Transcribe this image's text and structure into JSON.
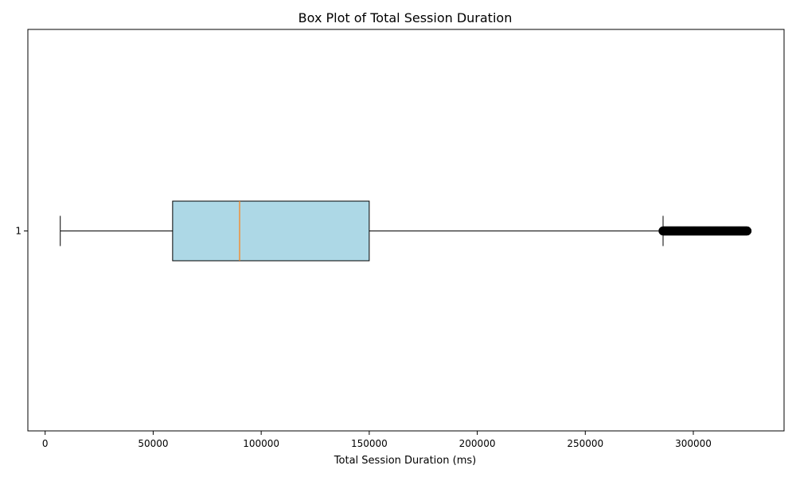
{
  "chart_data": {
    "type": "boxplot",
    "orientation": "horizontal",
    "title": "Box Plot of Total Session Duration",
    "xlabel": "Total Session Duration (ms)",
    "ylabel": "",
    "xlim": [
      -8000,
      342000
    ],
    "xticks": [
      0,
      50000,
      100000,
      150000,
      200000,
      250000,
      300000
    ],
    "grid": false,
    "categories": [
      "1"
    ],
    "boxes": [
      {
        "label": "1",
        "whisker_low": 7000,
        "q1": 59000,
        "median": 90000,
        "q3": 150000,
        "whisker_high": 286000,
        "outlier_range": [
          286000,
          325000
        ]
      }
    ],
    "colors": {
      "box_fill": "#add8e6",
      "median": "#ff7f0e",
      "outlier": "#000000"
    }
  }
}
